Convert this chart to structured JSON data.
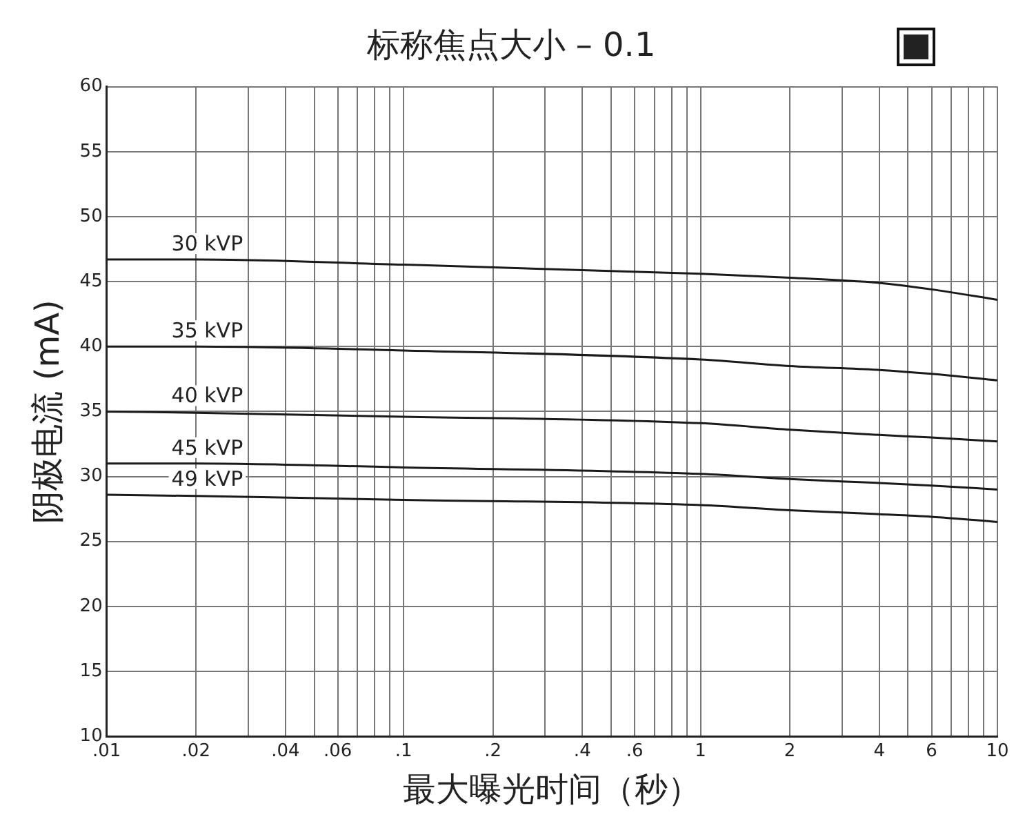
{
  "chart_data": {
    "type": "line",
    "title": "标称焦点大小 – 0.1",
    "xlabel": "最大曝光时间（秒）",
    "ylabel": "阴极电流 (mA)",
    "log": "x",
    "grid": true,
    "legend": false,
    "marker": "none",
    "line_style": "solid",
    "x": [
      0.01,
      0.02,
      0.1,
      1,
      2,
      4,
      6,
      10
    ],
    "xlim": [
      0.01,
      10
    ],
    "xticks": [
      {
        "value": 0.01,
        "label": ".01"
      },
      {
        "value": 0.02,
        "label": ".02"
      },
      {
        "value": 0.03,
        "label": null
      },
      {
        "value": 0.04,
        "label": ".04"
      },
      {
        "value": 0.05,
        "label": null
      },
      {
        "value": 0.06,
        "label": ".06"
      },
      {
        "value": 0.07,
        "label": null
      },
      {
        "value": 0.08,
        "label": null
      },
      {
        "value": 0.09,
        "label": null
      },
      {
        "value": 0.1,
        "label": ".1"
      },
      {
        "value": 0.2,
        "label": ".2"
      },
      {
        "value": 0.3,
        "label": null
      },
      {
        "value": 0.4,
        "label": ".4"
      },
      {
        "value": 0.5,
        "label": null
      },
      {
        "value": 0.6,
        "label": ".6"
      },
      {
        "value": 0.7,
        "label": null
      },
      {
        "value": 0.8,
        "label": null
      },
      {
        "value": 0.9,
        "label": null
      },
      1,
      2,
      {
        "value": 3,
        "label": null
      },
      4,
      {
        "value": 5,
        "label": null
      },
      6,
      {
        "value": 7,
        "label": null
      },
      {
        "value": 8,
        "label": null
      },
      {
        "value": 9,
        "label": null
      },
      10
    ],
    "ylim": [
      10,
      60
    ],
    "yticks": [
      10,
      15,
      20,
      25,
      30,
      35,
      40,
      45,
      50,
      55,
      60
    ],
    "series": [
      {
        "name": "30 kVP",
        "color": "#1a1a1a",
        "values": [
          46.7,
          46.7,
          46.3,
          45.6,
          45.3,
          44.9,
          44.4,
          43.6
        ]
      },
      {
        "name": "35 kVP",
        "color": "#1a1a1a",
        "values": [
          40.0,
          40.0,
          39.7,
          39.0,
          38.5,
          38.2,
          37.9,
          37.4
        ]
      },
      {
        "name": "40 kVP",
        "color": "#1a1a1a",
        "values": [
          35.0,
          34.9,
          34.6,
          34.1,
          33.6,
          33.2,
          33.0,
          32.7
        ]
      },
      {
        "name": "45 kVP",
        "color": "#1a1a1a",
        "values": [
          31.0,
          31.0,
          30.7,
          30.2,
          29.8,
          29.5,
          29.3,
          29.0
        ]
      },
      {
        "name": "49 kVP",
        "color": "#1a1a1a",
        "values": [
          28.6,
          28.5,
          28.2,
          27.8,
          27.4,
          27.1,
          26.9,
          26.5
        ]
      }
    ]
  }
}
